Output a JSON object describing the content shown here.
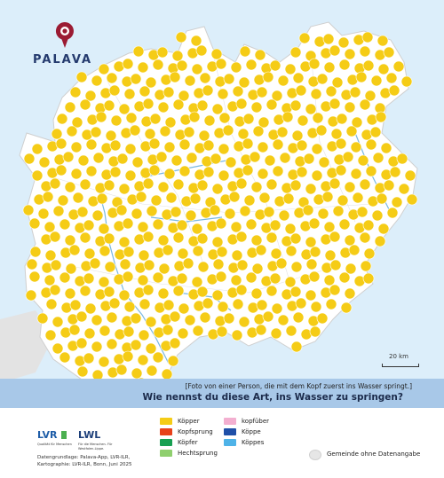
{
  "brand": {
    "name": "PALAVA",
    "color": "#9b1b33"
  },
  "question": {
    "description": "[Foto von einer Person, die mit dem Kopf zuerst ins Wasser springt.]",
    "title": "Wie nennst du diese Art, ins Wasser zu springen?"
  },
  "scale_label": "20 km",
  "legend": {
    "items": [
      {
        "label": "Köpper",
        "color": "#f5cc16"
      },
      {
        "label": "Kopfsprung",
        "color": "#e8411a"
      },
      {
        "label": "Köpfer",
        "color": "#17a052"
      },
      {
        "label": "Hechtsprung",
        "color": "#8fcf6e"
      },
      {
        "label": "kopfüber",
        "color": "#f3afd0"
      },
      {
        "label": "Köppe",
        "color": "#1f4fa8"
      },
      {
        "label": "Köppes",
        "color": "#4fb3e8"
      }
    ],
    "no_data": "Gemeinde ohne Datenangabe",
    "no_data_color": "#e6e6e6"
  },
  "partners": {
    "lvr": "LVR",
    "lvr_sub": "Qualität für Menschen",
    "lwl": "LWL",
    "lwl_sub": "Für die Menschen. Für Westfalen-Lippe."
  },
  "credits": {
    "line1": "Datengrundlage: Palava-App, LVR-ILR,",
    "line2": "Kartographie: LVR-ILR, Bonn, Juni 2025"
  },
  "map_data": {
    "colors": {
      "land": "#ffffff",
      "water": "#dceefa",
      "rivers": "#7ab8e0",
      "boundary": "#d8d8d8",
      "outside": "#e3e3e3"
    },
    "dominant": "Köpper"
  }
}
